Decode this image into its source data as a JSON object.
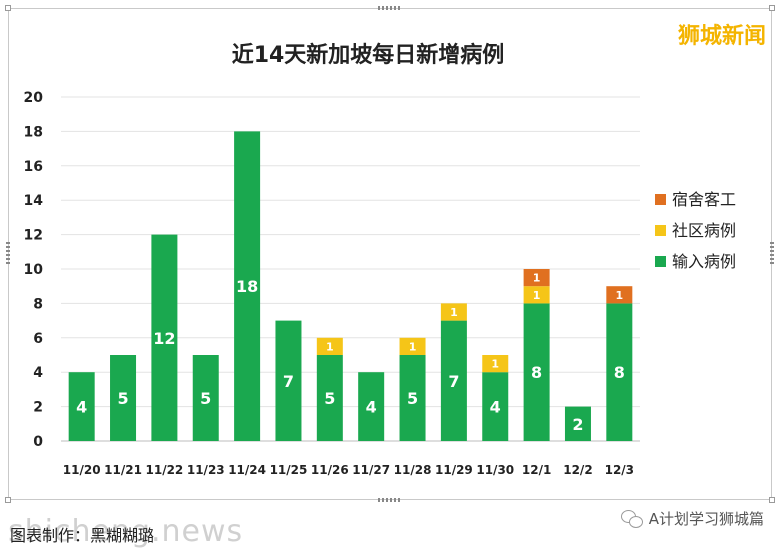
{
  "brand": "狮城新闻",
  "footer": {
    "credit": "图表制作：黑糊糊璐",
    "account": "A计划学习狮城篇",
    "watermark": "shicheng.news"
  },
  "colors": {
    "imported": "#1aa84f",
    "community": "#f5c518",
    "dormitory": "#e07020"
  },
  "chart_data": {
    "type": "bar",
    "stacked": true,
    "title": "近14天新加坡每日新增病例",
    "categories": [
      "11/20",
      "11/21",
      "11/22",
      "11/23",
      "11/24",
      "11/25",
      "11/26",
      "11/27",
      "11/28",
      "11/29",
      "11/30",
      "12/1",
      "12/2",
      "12/3"
    ],
    "series": [
      {
        "name": "输入病例",
        "color": "#1aa84f",
        "values": [
          4,
          5,
          12,
          5,
          18,
          7,
          5,
          4,
          5,
          7,
          4,
          8,
          2,
          8
        ]
      },
      {
        "name": "社区病例",
        "color": "#f5c518",
        "values": [
          0,
          0,
          0,
          0,
          0,
          0,
          1,
          0,
          1,
          1,
          1,
          1,
          0,
          0
        ]
      },
      {
        "name": "宿舍客工",
        "color": "#e07020",
        "values": [
          0,
          0,
          0,
          0,
          0,
          0,
          0,
          0,
          0,
          0,
          0,
          1,
          0,
          1
        ]
      }
    ],
    "ylim": [
      0,
      20
    ],
    "yticks": [
      0,
      2,
      4,
      6,
      8,
      10,
      12,
      14,
      16,
      18,
      20
    ],
    "grid": true,
    "legend": "right"
  }
}
